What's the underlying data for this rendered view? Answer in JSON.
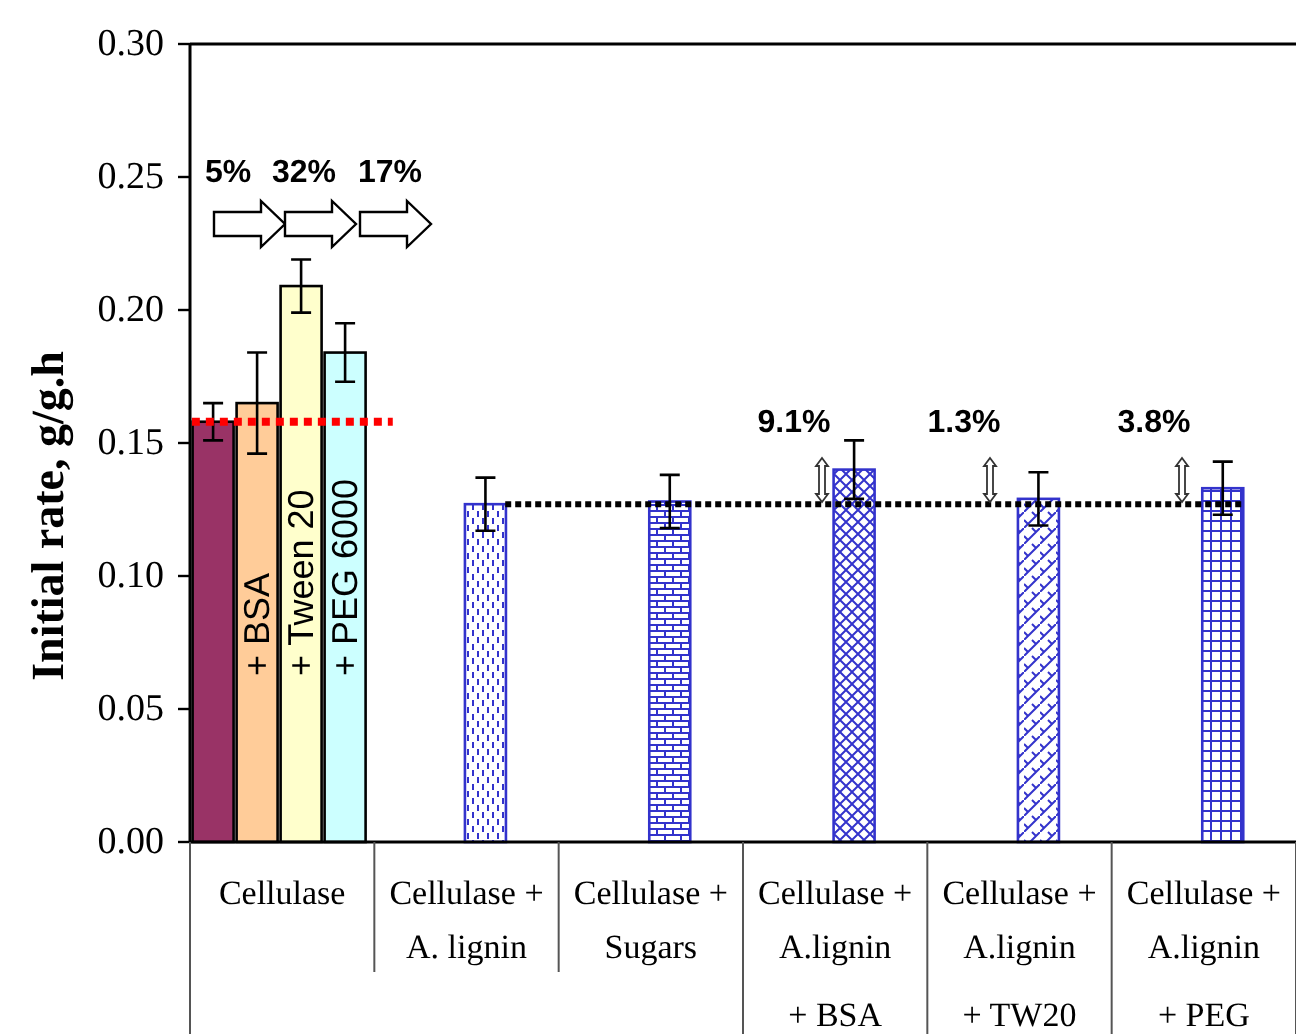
{
  "chart_data": {
    "type": "bar",
    "ylabel": "Initial rate, g/g.h",
    "categories": [
      "Cellulase",
      "Cellulase +\nA. lignin",
      "Cellulase +\nSugars",
      "Cellulase +\nA.lignin\n+ BSA",
      "Cellulase +\nA.lignin\n+ TW20",
      "Cellulase +\nA.lignin\n+ PEG"
    ],
    "series": [
      {
        "color": "#993366",
        "values": [
          0.158,
          null,
          null,
          null,
          null,
          null
        ],
        "errors": [
          0.007,
          null,
          null,
          null,
          null,
          null
        ]
      },
      {
        "name": "+ BSA",
        "color": "#ffcc99",
        "values": [
          0.165,
          null,
          null,
          null,
          null,
          null
        ],
        "errors": [
          0.019,
          null,
          null,
          null,
          null,
          null
        ]
      },
      {
        "name": "+ Tween 20",
        "color": "#ffffcc",
        "values": [
          0.209,
          null,
          null,
          null,
          null,
          null
        ],
        "errors": [
          0.01,
          null,
          null,
          null,
          null,
          null
        ]
      },
      {
        "name": "+ PEG 6000",
        "color": "#ccffff",
        "values": [
          0.184,
          null,
          null,
          null,
          null,
          null
        ],
        "errors": [
          0.011,
          null,
          null,
          null,
          null,
          null
        ]
      },
      {
        "color": "#3333cc",
        "values": [
          null,
          0.127,
          0.128,
          0.14,
          0.129,
          0.133
        ],
        "errors": [
          null,
          0.01,
          0.01,
          0.011,
          0.01,
          0.01
        ]
      }
    ],
    "ylim": [
      0,
      0.3
    ],
    "yticks": [
      {
        "value": 0,
        "label": "0.00"
      },
      {
        "value": 0.05,
        "label": "0.05"
      },
      {
        "value": 0.1,
        "label": "0.10"
      },
      {
        "value": 0.15,
        "label": "0.15"
      },
      {
        "value": 0.2,
        "label": "0.20"
      },
      {
        "value": 0.25,
        "label": "0.25"
      },
      {
        "value": 0.3,
        "label": "0.30"
      }
    ],
    "ref_lines": [
      {
        "axis": "y",
        "value": 0.158,
        "color": "#ff0000",
        "line_style": "dotted"
      },
      {
        "axis": "y",
        "value": 0.127,
        "color": "#000000",
        "line_style": "dotted"
      }
    ],
    "annotations": [
      "5%",
      "32%",
      "17%",
      "9.1%",
      "1.3%",
      "3.8%"
    ]
  }
}
